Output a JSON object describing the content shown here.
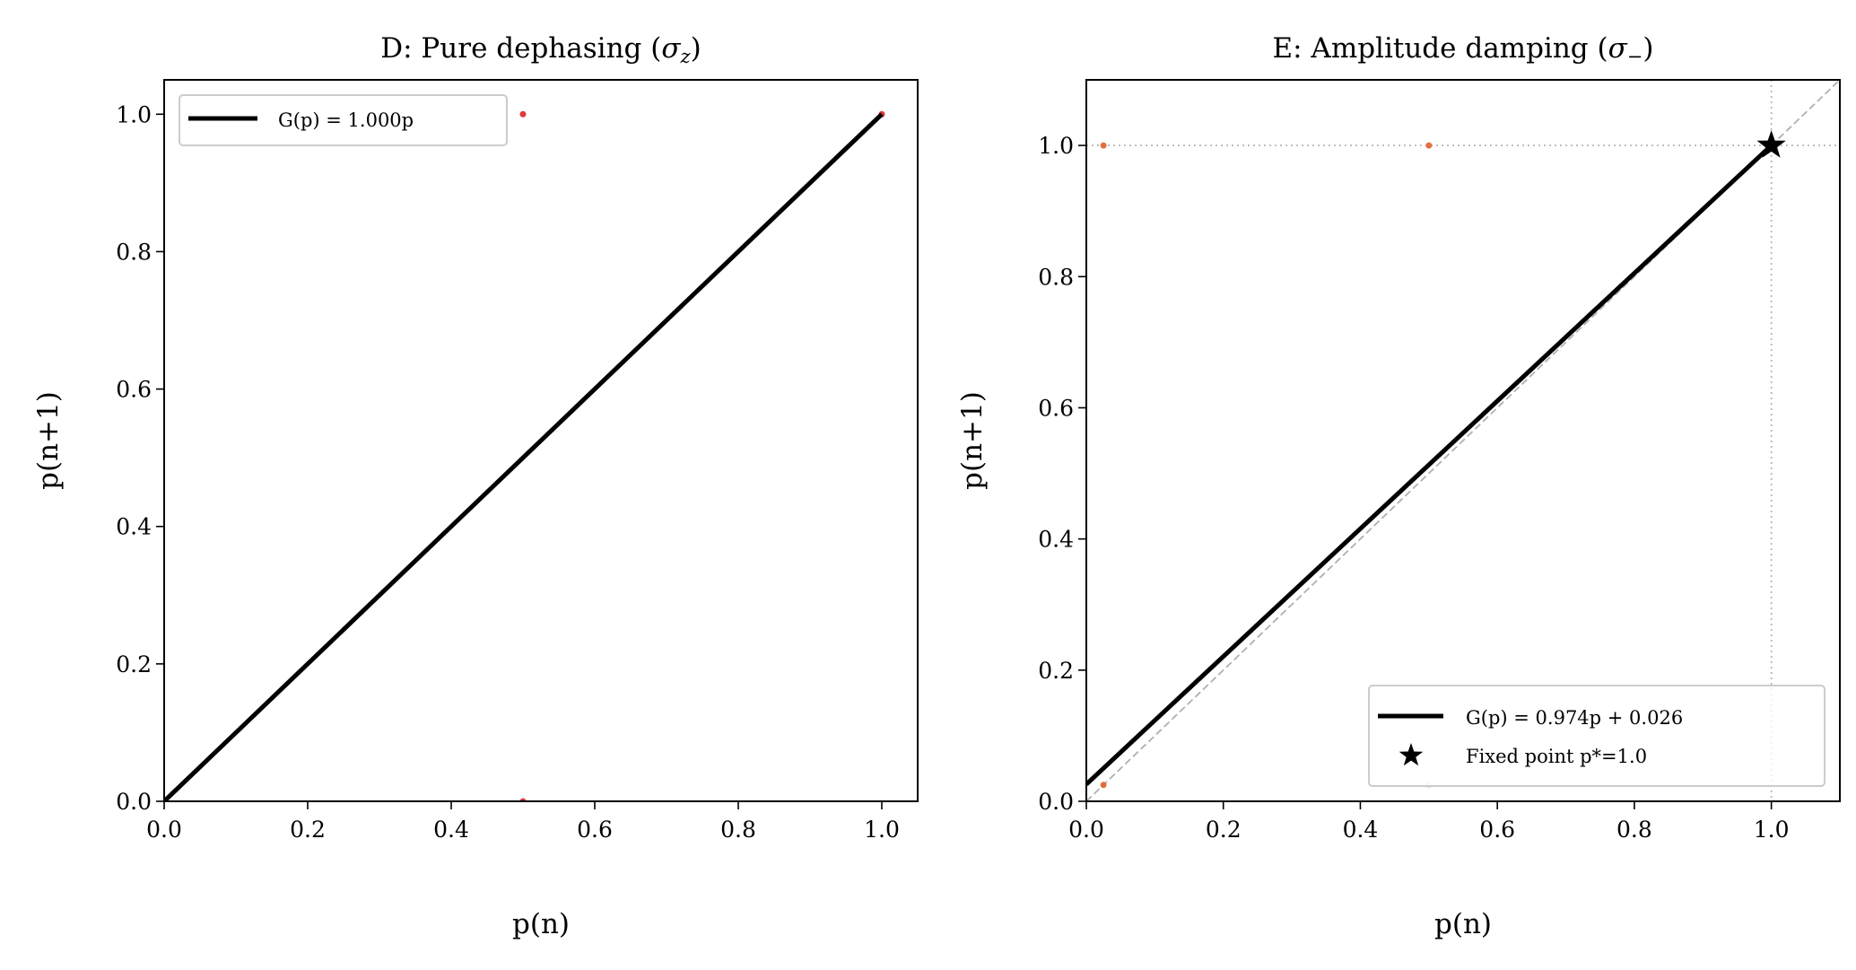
{
  "chart_data": [
    {
      "type": "line",
      "title": "D: Pure dephasing (σ_z)",
      "title_main": "D: Pure dephasing (",
      "title_sym": "σ",
      "title_sub": "z",
      "title_end": ")",
      "xlabel": "p(n)",
      "ylabel": "p(n+1)",
      "xlim": [
        0,
        1.05
      ],
      "ylim": [
        0,
        1.05
      ],
      "xticks": [
        "0.0",
        "0.2",
        "0.4",
        "0.6",
        "0.8",
        "1.0"
      ],
      "yticks": [
        "0.0",
        "0.2",
        "0.4",
        "0.6",
        "0.8",
        "1.0"
      ],
      "grid": false,
      "legend_position": "upper-left",
      "series": [
        {
          "name": "G(p) = 1.000p",
          "kind": "line",
          "x": [
            0,
            1
          ],
          "y": [
            0,
            1
          ],
          "color": "#000000"
        }
      ],
      "points": {
        "x": [
          0.5,
          0.5,
          1.0
        ],
        "y": [
          1.0,
          0.0,
          1.0
        ],
        "color": "#d62728"
      }
    },
    {
      "type": "line",
      "title": "E: Amplitude damping (σ_−)",
      "title_main": "E: Amplitude damping (",
      "title_sym": "σ",
      "title_sub": "−",
      "title_end": ")",
      "xlabel": "p(n)",
      "ylabel": "p(n+1)",
      "xlim": [
        0,
        1.1
      ],
      "ylim": [
        0,
        1.1
      ],
      "xticks": [
        "0.0",
        "0.2",
        "0.4",
        "0.6",
        "0.8",
        "1.0"
      ],
      "yticks": [
        "0.0",
        "0.2",
        "0.4",
        "0.6",
        "0.8",
        "1.0"
      ],
      "grid": false,
      "legend_position": "lower-right",
      "series": [
        {
          "name": "G(p) = 0.974p + 0.026",
          "kind": "line",
          "x": [
            0,
            1
          ],
          "y": [
            0.026,
            1.0
          ],
          "color": "#000000"
        },
        {
          "name": "Fixed point p*=1.0",
          "kind": "marker-star",
          "x": [
            1.0
          ],
          "y": [
            1.0
          ],
          "color": "#000000"
        }
      ],
      "identity_line": {
        "x": [
          0,
          1.1
        ],
        "y": [
          0,
          1.1
        ],
        "color": "#b0b0b0",
        "style": "dashed"
      },
      "reference_lines": {
        "x": 1.0,
        "y": 1.0,
        "color": "#b0b0b0",
        "style": "dotted"
      },
      "points": {
        "x": [
          0.025,
          0.5,
          0.025,
          0.5
        ],
        "y": [
          1.0,
          1.0,
          0.025,
          0.025
        ],
        "color": "#e0622a"
      }
    }
  ]
}
